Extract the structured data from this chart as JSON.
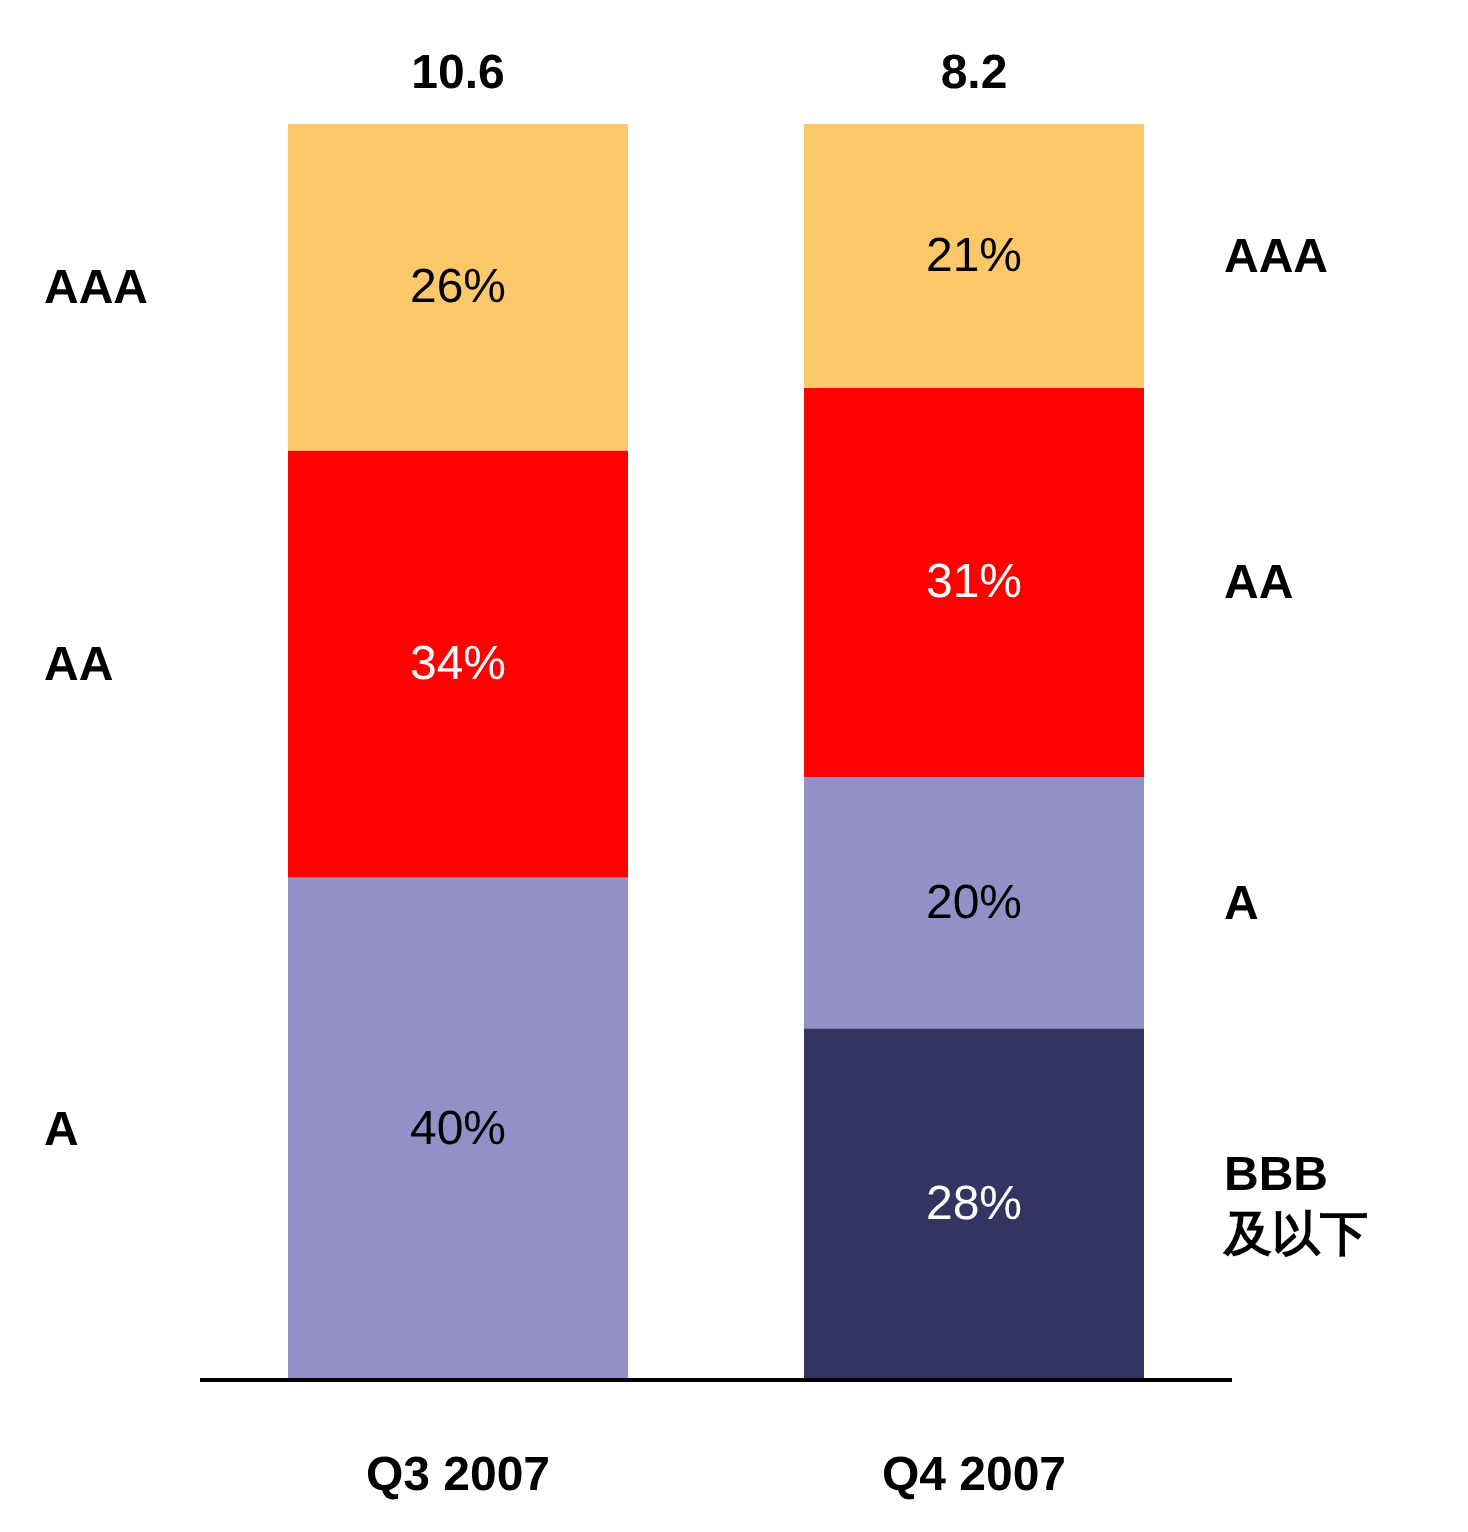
{
  "chart_data": {
    "type": "bar",
    "stacked": true,
    "categories": [
      "Q3 2007",
      "Q4 2007"
    ],
    "ylim": [
      0,
      100
    ],
    "tick_labels": "x",
    "annotations": [
      {
        "text": "10.6",
        "x": "Q3 2007",
        "y": 100
      },
      {
        "text": "8.2",
        "x": "Q4 2007",
        "y": 100
      }
    ],
    "series": [
      {
        "name": "BBB 及以下",
        "color": "#343462",
        "values": [
          null,
          28
        ],
        "value_labels": [
          null,
          "28%"
        ]
      },
      {
        "name": "A",
        "color": "#9290c6",
        "values": [
          40,
          20
        ],
        "value_labels": [
          "40%",
          "20%"
        ]
      },
      {
        "name": "AA",
        "color": "#ff0000",
        "values": [
          34,
          31
        ],
        "value_labels": [
          "34%",
          "31%"
        ]
      },
      {
        "name": "AAA",
        "color": "#fdc86a",
        "values": [
          26,
          21
        ],
        "value_labels": [
          "26%",
          "21%"
        ]
      }
    ]
  }
}
